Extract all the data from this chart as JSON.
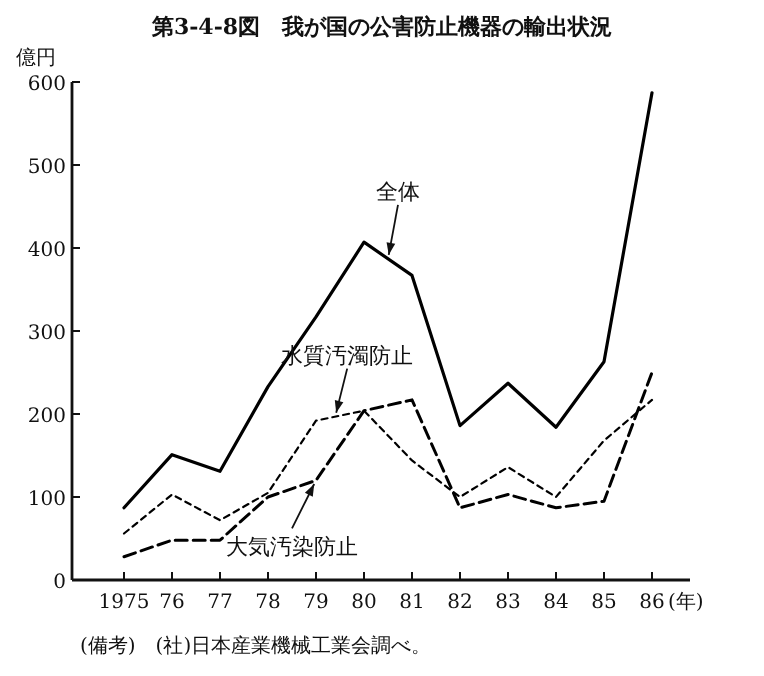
{
  "chart_data": {
    "type": "line",
    "title": "第3-4-8図　我が国の公害防止機器の輸出状況",
    "ylabel": "億円",
    "xlabel": "(年)",
    "categories": [
      "1975",
      "76",
      "77",
      "78",
      "79",
      "80",
      "81",
      "82",
      "83",
      "84",
      "85",
      "86"
    ],
    "ylim": [
      0,
      600
    ],
    "yticks": [
      0,
      100,
      200,
      300,
      400,
      500,
      600
    ],
    "grid": false,
    "legend": false,
    "marker": "none",
    "series": [
      {
        "name": "全体",
        "color": "#000000",
        "line_style": "solid",
        "values": [
          87,
          151,
          131,
          233,
          317,
          407,
          367,
          186,
          237,
          184,
          263,
          587
        ]
      },
      {
        "name": "水質汚濁防止",
        "color": "#000000",
        "line_style": "dotted",
        "values": [
          56,
          103,
          72,
          105,
          192,
          204,
          144,
          100,
          136,
          100,
          168,
          217
        ]
      },
      {
        "name": "大気汚染防止",
        "color": "#000000",
        "line_style": "dashed",
        "values": [
          28,
          48,
          48,
          100,
          120,
          204,
          217,
          87,
          103,
          87,
          95,
          250
        ]
      }
    ],
    "annotations": [
      "(備考)　(社)日本産業機械工業会調べ。"
    ]
  }
}
